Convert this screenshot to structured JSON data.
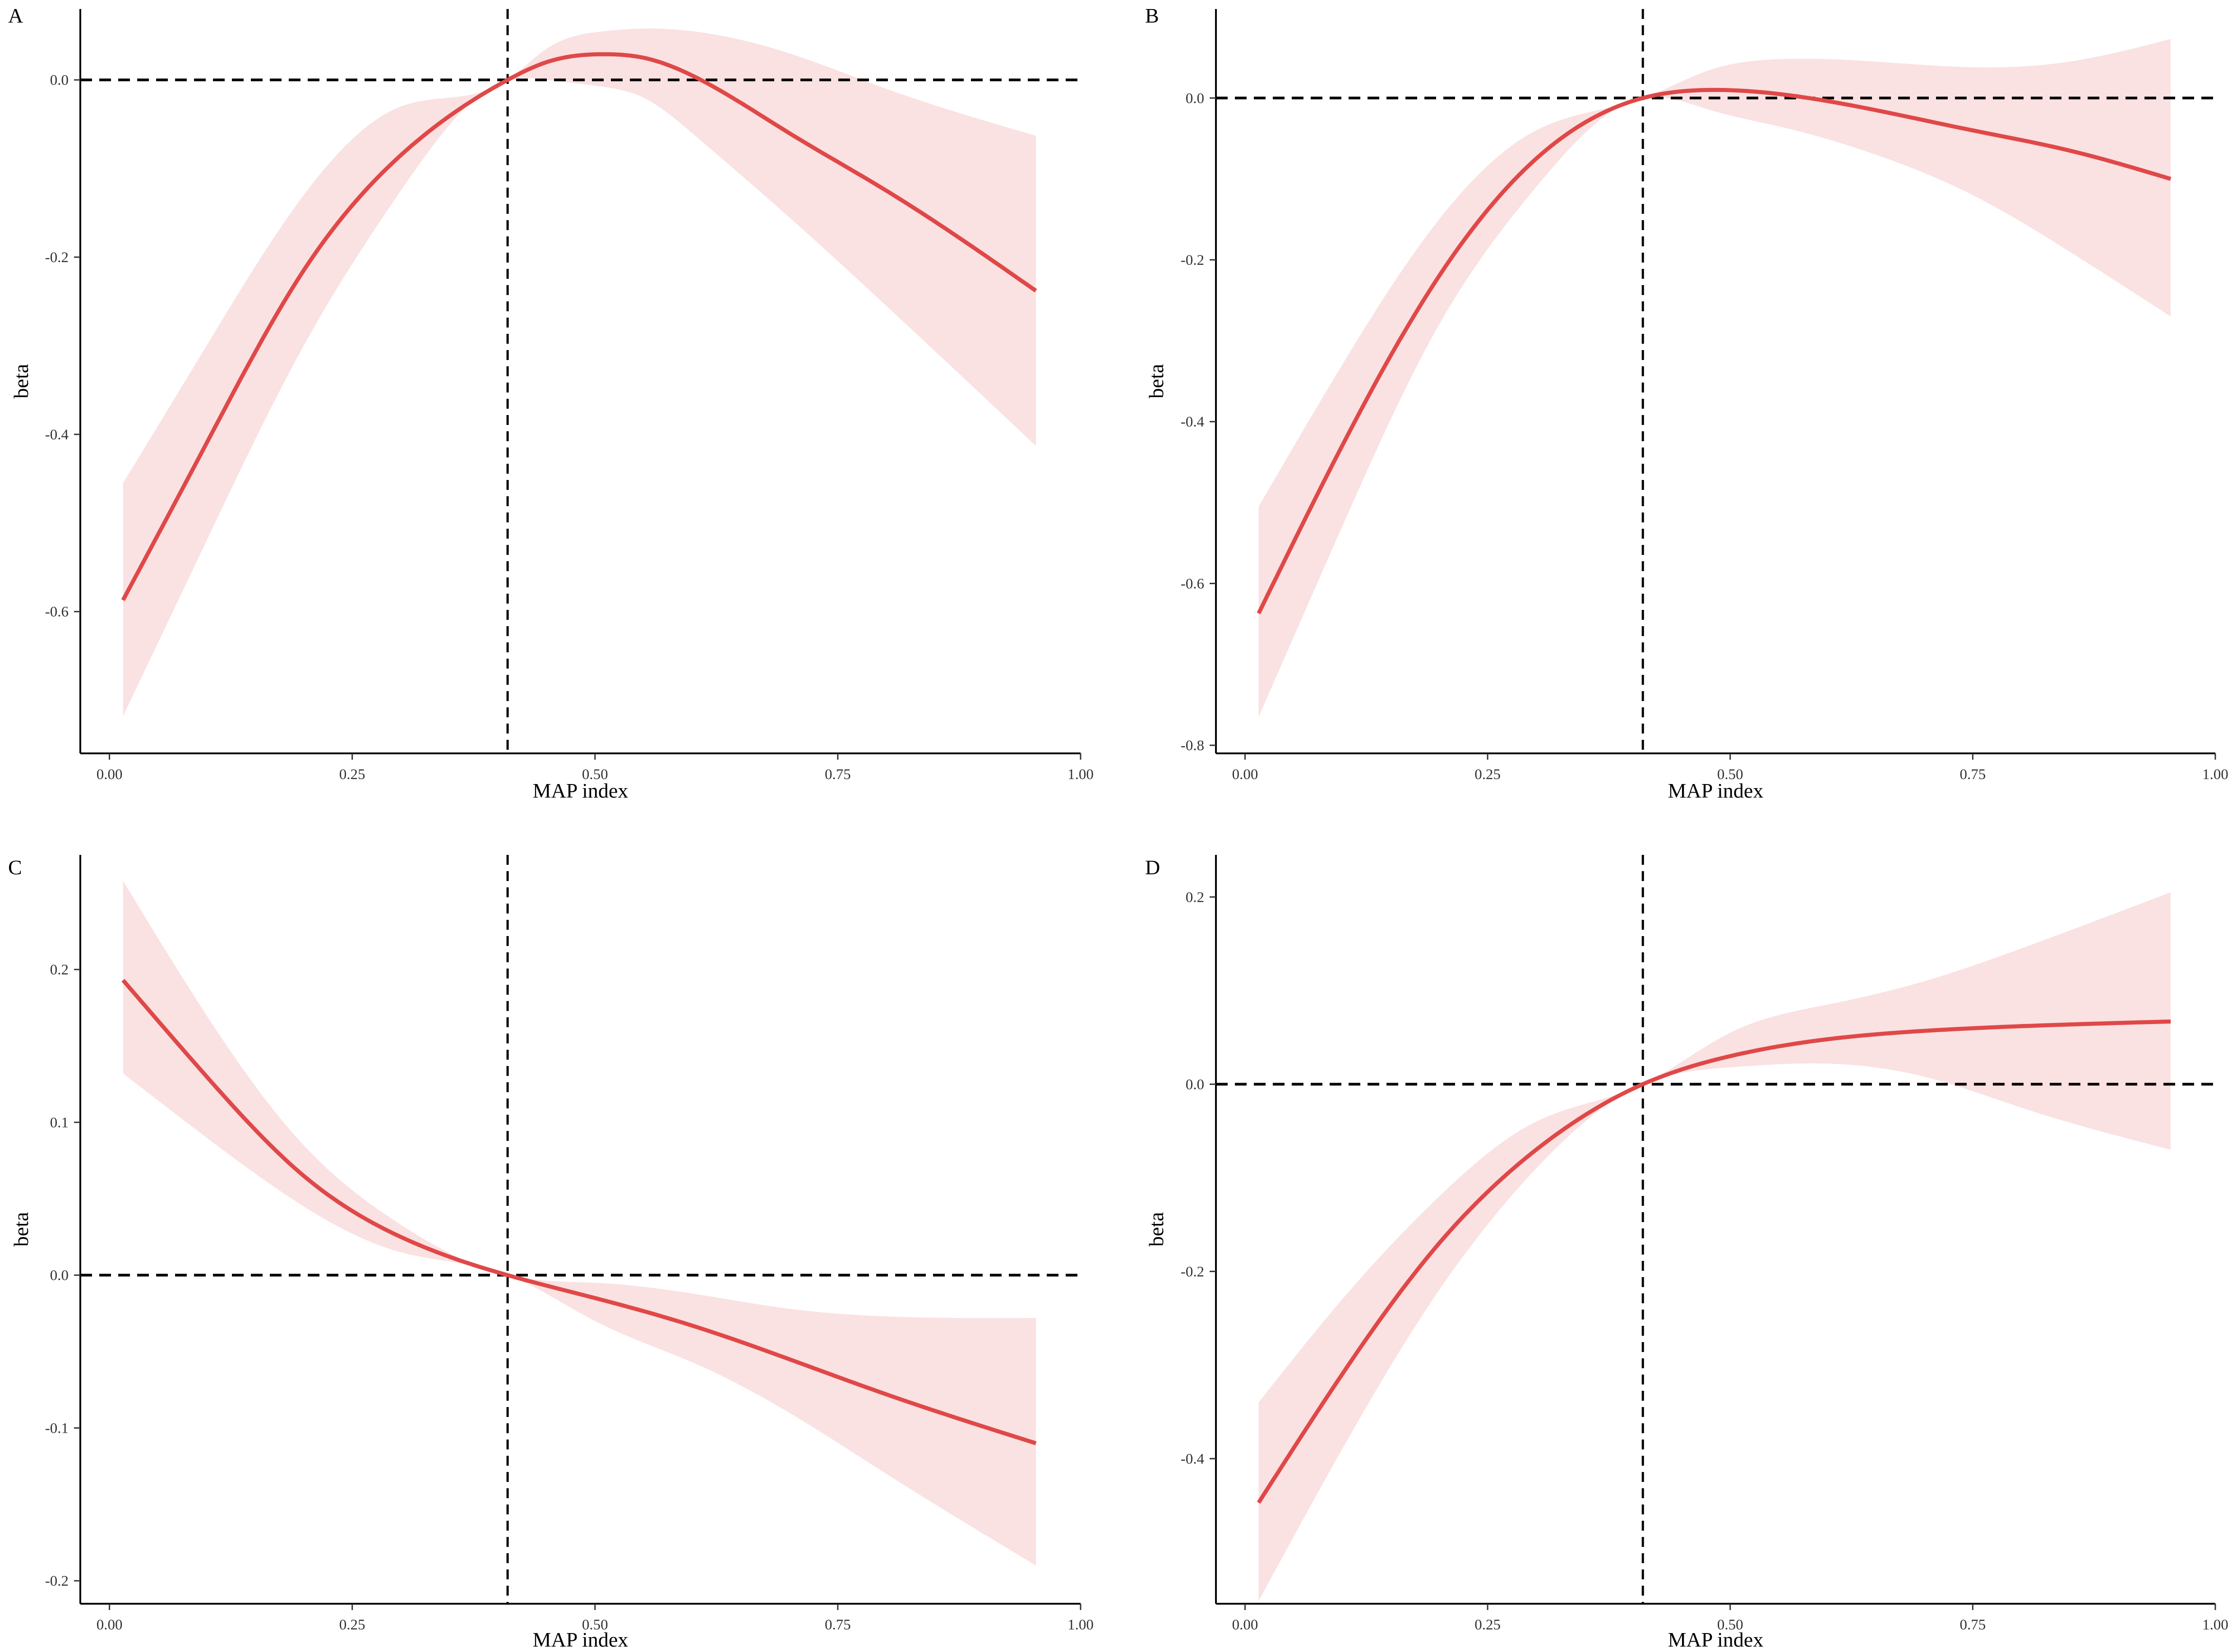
{
  "chart_data": [
    {
      "panel": "A",
      "type": "line",
      "xlabel": "MAP index",
      "ylabel": "beta",
      "xlim": [
        -0.03,
        1.0
      ],
      "ylim": [
        -0.76,
        0.08
      ],
      "xticks": [
        "0.00",
        "0.25",
        "0.50",
        "0.75",
        "1.00"
      ],
      "yticks": [
        "-0.6",
        "-0.4",
        "-0.2",
        "0.0"
      ],
      "reference_lines": {
        "hline_y": 0.0,
        "vline_x": 0.41
      },
      "colors": {
        "line": "#e04848",
        "band": "#fae1e2"
      },
      "grid": false,
      "x": [
        0.014,
        0.1,
        0.2,
        0.3,
        0.41,
        0.45,
        0.51,
        0.55,
        0.6,
        0.7,
        0.8,
        0.954
      ],
      "y": [
        -0.587,
        -0.41,
        -0.215,
        -0.085,
        0.0,
        0.02,
        0.029,
        0.025,
        0.005,
        -0.06,
        -0.125,
        -0.238
      ],
      "lower": [
        -0.718,
        -0.52,
        -0.3,
        -0.125,
        0.0,
        0.0,
        -0.008,
        -0.02,
        -0.06,
        -0.155,
        -0.255,
        -0.413
      ],
      "upper": [
        -0.455,
        -0.3,
        -0.13,
        -0.03,
        0.0,
        0.035,
        0.055,
        0.058,
        0.055,
        0.03,
        -0.01,
        -0.063
      ]
    },
    {
      "panel": "B",
      "type": "line",
      "xlabel": "MAP index",
      "ylabel": "beta",
      "xlim": [
        -0.03,
        1.0
      ],
      "ylim": [
        -0.81,
        0.11
      ],
      "xticks": [
        "0.00",
        "0.25",
        "0.50",
        "0.75",
        "1.00"
      ],
      "yticks": [
        "-0.8",
        "-0.6",
        "-0.4",
        "-0.2",
        "0.0"
      ],
      "reference_lines": {
        "hline_y": 0.0,
        "vline_x": 0.41
      },
      "colors": {
        "line": "#e04848",
        "band": "#fae1e2"
      },
      "grid": false,
      "x": [
        0.014,
        0.1,
        0.2,
        0.3,
        0.41,
        0.48,
        0.55,
        0.65,
        0.75,
        0.85,
        0.954
      ],
      "y": [
        -0.637,
        -0.43,
        -0.22,
        -0.075,
        0.0,
        0.01,
        0.005,
        -0.015,
        -0.04,
        -0.065,
        -0.1
      ],
      "lower": [
        -0.765,
        -0.53,
        -0.28,
        -0.11,
        0.0,
        -0.015,
        -0.035,
        -0.07,
        -0.12,
        -0.19,
        -0.27
      ],
      "upper": [
        -0.505,
        -0.33,
        -0.15,
        -0.04,
        0.0,
        0.035,
        0.048,
        0.045,
        0.038,
        0.045,
        0.073
      ]
    },
    {
      "panel": "C",
      "type": "line",
      "xlabel": "MAP index",
      "ylabel": "beta",
      "xlim": [
        -0.03,
        1.0
      ],
      "ylim": [
        -0.215,
        0.275
      ],
      "xticks": [
        "0.00",
        "0.25",
        "0.50",
        "0.75",
        "1.00"
      ],
      "yticks": [
        "-0.2",
        "-0.1",
        "0.0",
        "0.1",
        "0.2"
      ],
      "reference_lines": {
        "hline_y": 0.0,
        "vline_x": 0.41
      },
      "colors": {
        "line": "#e04848",
        "band": "#fae1e2"
      },
      "grid": false,
      "x": [
        0.014,
        0.1,
        0.2,
        0.3,
        0.41,
        0.5,
        0.6,
        0.7,
        0.8,
        0.954
      ],
      "y": [
        0.193,
        0.13,
        0.065,
        0.025,
        0.0,
        -0.015,
        -0.033,
        -0.055,
        -0.078,
        -0.11
      ],
      "lower": [
        0.132,
        0.09,
        0.045,
        0.015,
        0.0,
        -0.03,
        -0.057,
        -0.09,
        -0.13,
        -0.19
      ],
      "upper": [
        0.258,
        0.17,
        0.085,
        0.033,
        0.0,
        -0.005,
        -0.012,
        -0.022,
        -0.027,
        -0.028
      ]
    },
    {
      "panel": "D",
      "type": "line",
      "xlabel": "MAP index",
      "ylabel": "beta",
      "xlim": [
        -0.03,
        1.0
      ],
      "ylim": [
        -0.555,
        0.245
      ],
      "xticks": [
        "0.00",
        "0.25",
        "0.50",
        "0.75",
        "1.00"
      ],
      "yticks": [
        "-0.4",
        "-0.2",
        "0.0",
        "0.2"
      ],
      "reference_lines": {
        "hline_y": 0.0,
        "vline_x": 0.41
      },
      "colors": {
        "line": "#e04848",
        "band": "#fae1e2"
      },
      "grid": false,
      "x": [
        0.014,
        0.1,
        0.2,
        0.3,
        0.41,
        0.5,
        0.6,
        0.7,
        0.8,
        0.954
      ],
      "y": [
        -0.447,
        -0.31,
        -0.17,
        -0.07,
        0.0,
        0.03,
        0.048,
        0.057,
        0.062,
        0.067
      ],
      "lower": [
        -0.552,
        -0.39,
        -0.22,
        -0.09,
        0.0,
        0.018,
        0.022,
        0.008,
        -0.025,
        -0.07
      ],
      "upper": [
        -0.34,
        -0.23,
        -0.12,
        -0.04,
        0.0,
        0.055,
        0.085,
        0.11,
        0.145,
        0.205
      ]
    }
  ]
}
